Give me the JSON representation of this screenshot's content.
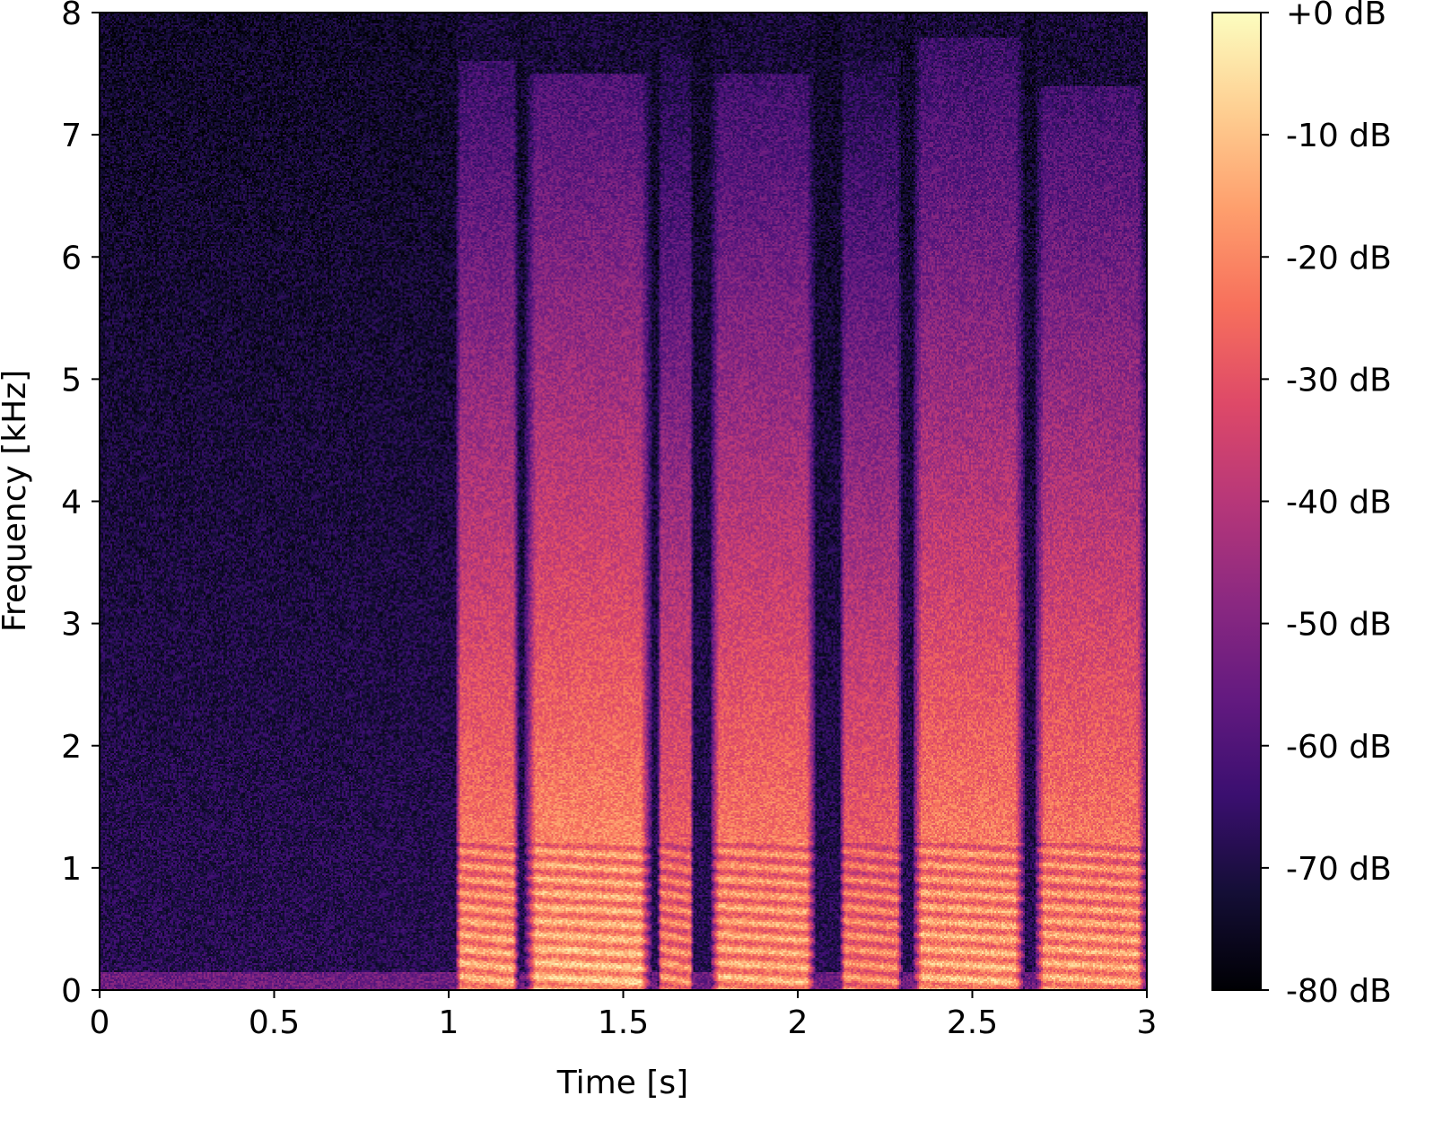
{
  "chart_data": {
    "type": "heatmap",
    "title": "",
    "xlabel": "Time [s]",
    "ylabel": "Frequency [kHz]",
    "xlim": [
      0,
      3
    ],
    "ylim": [
      0,
      8
    ],
    "x_ticks": [
      "0",
      "0.5",
      "1",
      "1.5",
      "2",
      "2.5",
      "3"
    ],
    "x_tick_values": [
      0,
      0.5,
      1,
      1.5,
      2,
      2.5,
      3
    ],
    "y_ticks": [
      "0",
      "1",
      "2",
      "3",
      "4",
      "5",
      "6",
      "7",
      "8"
    ],
    "y_tick_values": [
      0,
      1,
      2,
      3,
      4,
      5,
      6,
      7,
      8
    ],
    "colorbar": {
      "colormap": "magma",
      "range_db": [
        -80,
        0
      ],
      "ticks": [
        "+0 dB",
        "-10 dB",
        "-20 dB",
        "-30 dB",
        "-40 dB",
        "-50 dB",
        "-60 dB",
        "-70 dB",
        "-80 dB"
      ],
      "tick_values": [
        0,
        -10,
        -20,
        -30,
        -40,
        -50,
        -60,
        -70,
        -80
      ]
    },
    "silence_interval_s": [
      0,
      1.02
    ],
    "noise_floor_db": -68,
    "speech_segments": [
      {
        "t0": 1.02,
        "t1": 1.2,
        "low_db": -15,
        "fmax_khz": 7.6
      },
      {
        "t0": 1.22,
        "t1": 1.58,
        "low_db": -12,
        "fmax_khz": 7.5
      },
      {
        "t0": 1.6,
        "t1": 1.7,
        "low_db": -20,
        "fmax_khz": 7.7
      },
      {
        "t0": 1.75,
        "t1": 2.05,
        "low_db": -15,
        "fmax_khz": 7.5
      },
      {
        "t0": 2.12,
        "t1": 2.3,
        "low_db": -20,
        "fmax_khz": 7.6
      },
      {
        "t0": 2.33,
        "t1": 2.65,
        "low_db": -14,
        "fmax_khz": 7.8
      },
      {
        "t0": 2.68,
        "t1": 3.0,
        "low_db": -15,
        "fmax_khz": 7.4
      }
    ]
  }
}
